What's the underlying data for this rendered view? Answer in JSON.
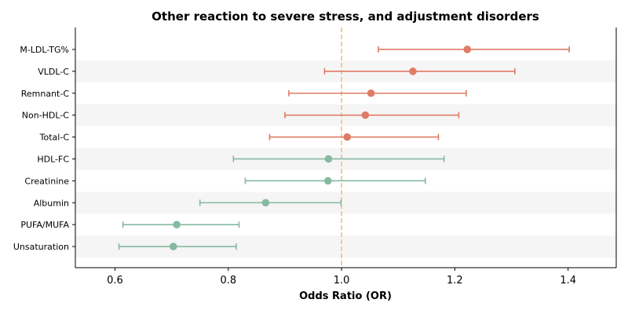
{
  "chart_data": {
    "type": "forest",
    "title": "Other reaction to severe stress, and adjustment disorders",
    "xlabel": "Odds Ratio (OR)",
    "ylabel": "",
    "xlim": [
      0.53,
      1.485
    ],
    "xticks": [
      0.6,
      0.8,
      1.0,
      1.2,
      1.4
    ],
    "xtick_labels": [
      "0.6",
      "0.8",
      "1.0",
      "1.2",
      "1.4"
    ],
    "reference_line": 1.0,
    "colors": {
      "risk": "#e07b65",
      "protective": "#86b9a0",
      "reference": "#f0c080",
      "band": "#f5f5f5"
    },
    "rows": [
      {
        "label": "M-LDL-TG%",
        "or": 1.222,
        "lower": 1.065,
        "upper": 1.402,
        "group": "risk"
      },
      {
        "label": "VLDL-C",
        "or": 1.126,
        "lower": 0.97,
        "upper": 1.306,
        "group": "risk"
      },
      {
        "label": "Remnant-C",
        "or": 1.052,
        "lower": 0.907,
        "upper": 1.22,
        "group": "risk"
      },
      {
        "label": "Non-HDL-C",
        "or": 1.042,
        "lower": 0.9,
        "upper": 1.207,
        "group": "risk"
      },
      {
        "label": "Total-C",
        "or": 1.01,
        "lower": 0.873,
        "upper": 1.171,
        "group": "risk"
      },
      {
        "label": "HDL-FC",
        "or": 0.977,
        "lower": 0.809,
        "upper": 1.181,
        "group": "protective"
      },
      {
        "label": "Creatinine",
        "or": 0.976,
        "lower": 0.83,
        "upper": 1.148,
        "group": "protective"
      },
      {
        "label": "Albumin",
        "or": 0.866,
        "lower": 0.75,
        "upper": 0.999,
        "group": "protective"
      },
      {
        "label": "PUFA/MUFA",
        "or": 0.709,
        "lower": 0.614,
        "upper": 0.819,
        "group": "protective"
      },
      {
        "label": "Unsaturation",
        "or": 0.703,
        "lower": 0.607,
        "upper": 0.814,
        "group": "protective"
      }
    ]
  }
}
